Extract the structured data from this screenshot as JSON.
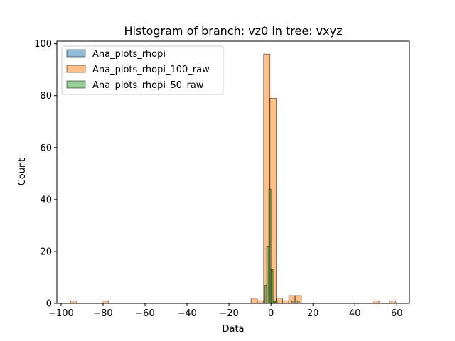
{
  "chart_data": {
    "type": "bar",
    "title": "Histogram of branch: vz0 in tree: vxyz",
    "xlabel": "Data",
    "ylabel": "Count",
    "xlim": [
      -102,
      66
    ],
    "ylim": [
      0,
      101
    ],
    "xticks": [
      -100,
      -80,
      -60,
      -40,
      -20,
      0,
      20,
      40,
      60
    ],
    "yticks": [
      0,
      20,
      40,
      60,
      80,
      100
    ],
    "legend_position": "upper-left",
    "series": [
      {
        "name": "Ana_plots_rhopi",
        "color": "#1f77b4",
        "bins": []
      },
      {
        "name": "Ana_plots_rhopi_100_raw",
        "color": "#ff7f0e",
        "bins": [
          {
            "x0": -95.5,
            "x1": -92.5,
            "count": 1
          },
          {
            "x0": -80.5,
            "x1": -77.5,
            "count": 1
          },
          {
            "x0": -9.5,
            "x1": -6.5,
            "count": 2
          },
          {
            "x0": -6.5,
            "x1": -3.5,
            "count": 1
          },
          {
            "x0": -3.5,
            "x1": -0.5,
            "count": 96
          },
          {
            "x0": -0.5,
            "x1": 2.5,
            "count": 79
          },
          {
            "x0": 2.5,
            "x1": 5.5,
            "count": 2
          },
          {
            "x0": 5.5,
            "x1": 8.5,
            "count": 1
          },
          {
            "x0": 8.5,
            "x1": 11.5,
            "count": 3
          },
          {
            "x0": 11.5,
            "x1": 14.5,
            "count": 3
          },
          {
            "x0": 48.5,
            "x1": 51.5,
            "count": 1
          },
          {
            "x0": 56.5,
            "x1": 59.5,
            "count": 1
          }
        ]
      },
      {
        "name": "Ana_plots_rhopi_50_raw",
        "color": "#2ca02c",
        "bins": [
          {
            "x0": -3.0,
            "x1": -2.0,
            "count": 7
          },
          {
            "x0": -2.0,
            "x1": -1.0,
            "count": 22
          },
          {
            "x0": -1.0,
            "x1": 0.0,
            "count": 44
          },
          {
            "x0": 0.0,
            "x1": 1.0,
            "count": 13
          },
          {
            "x0": 1.0,
            "x1": 2.0,
            "count": 1
          },
          {
            "x0": 2.0,
            "x1": 3.0,
            "count": 1
          },
          {
            "x0": 10.0,
            "x1": 11.0,
            "count": 1
          },
          {
            "x0": 12.5,
            "x1": 13.5,
            "count": 1
          }
        ]
      }
    ]
  }
}
